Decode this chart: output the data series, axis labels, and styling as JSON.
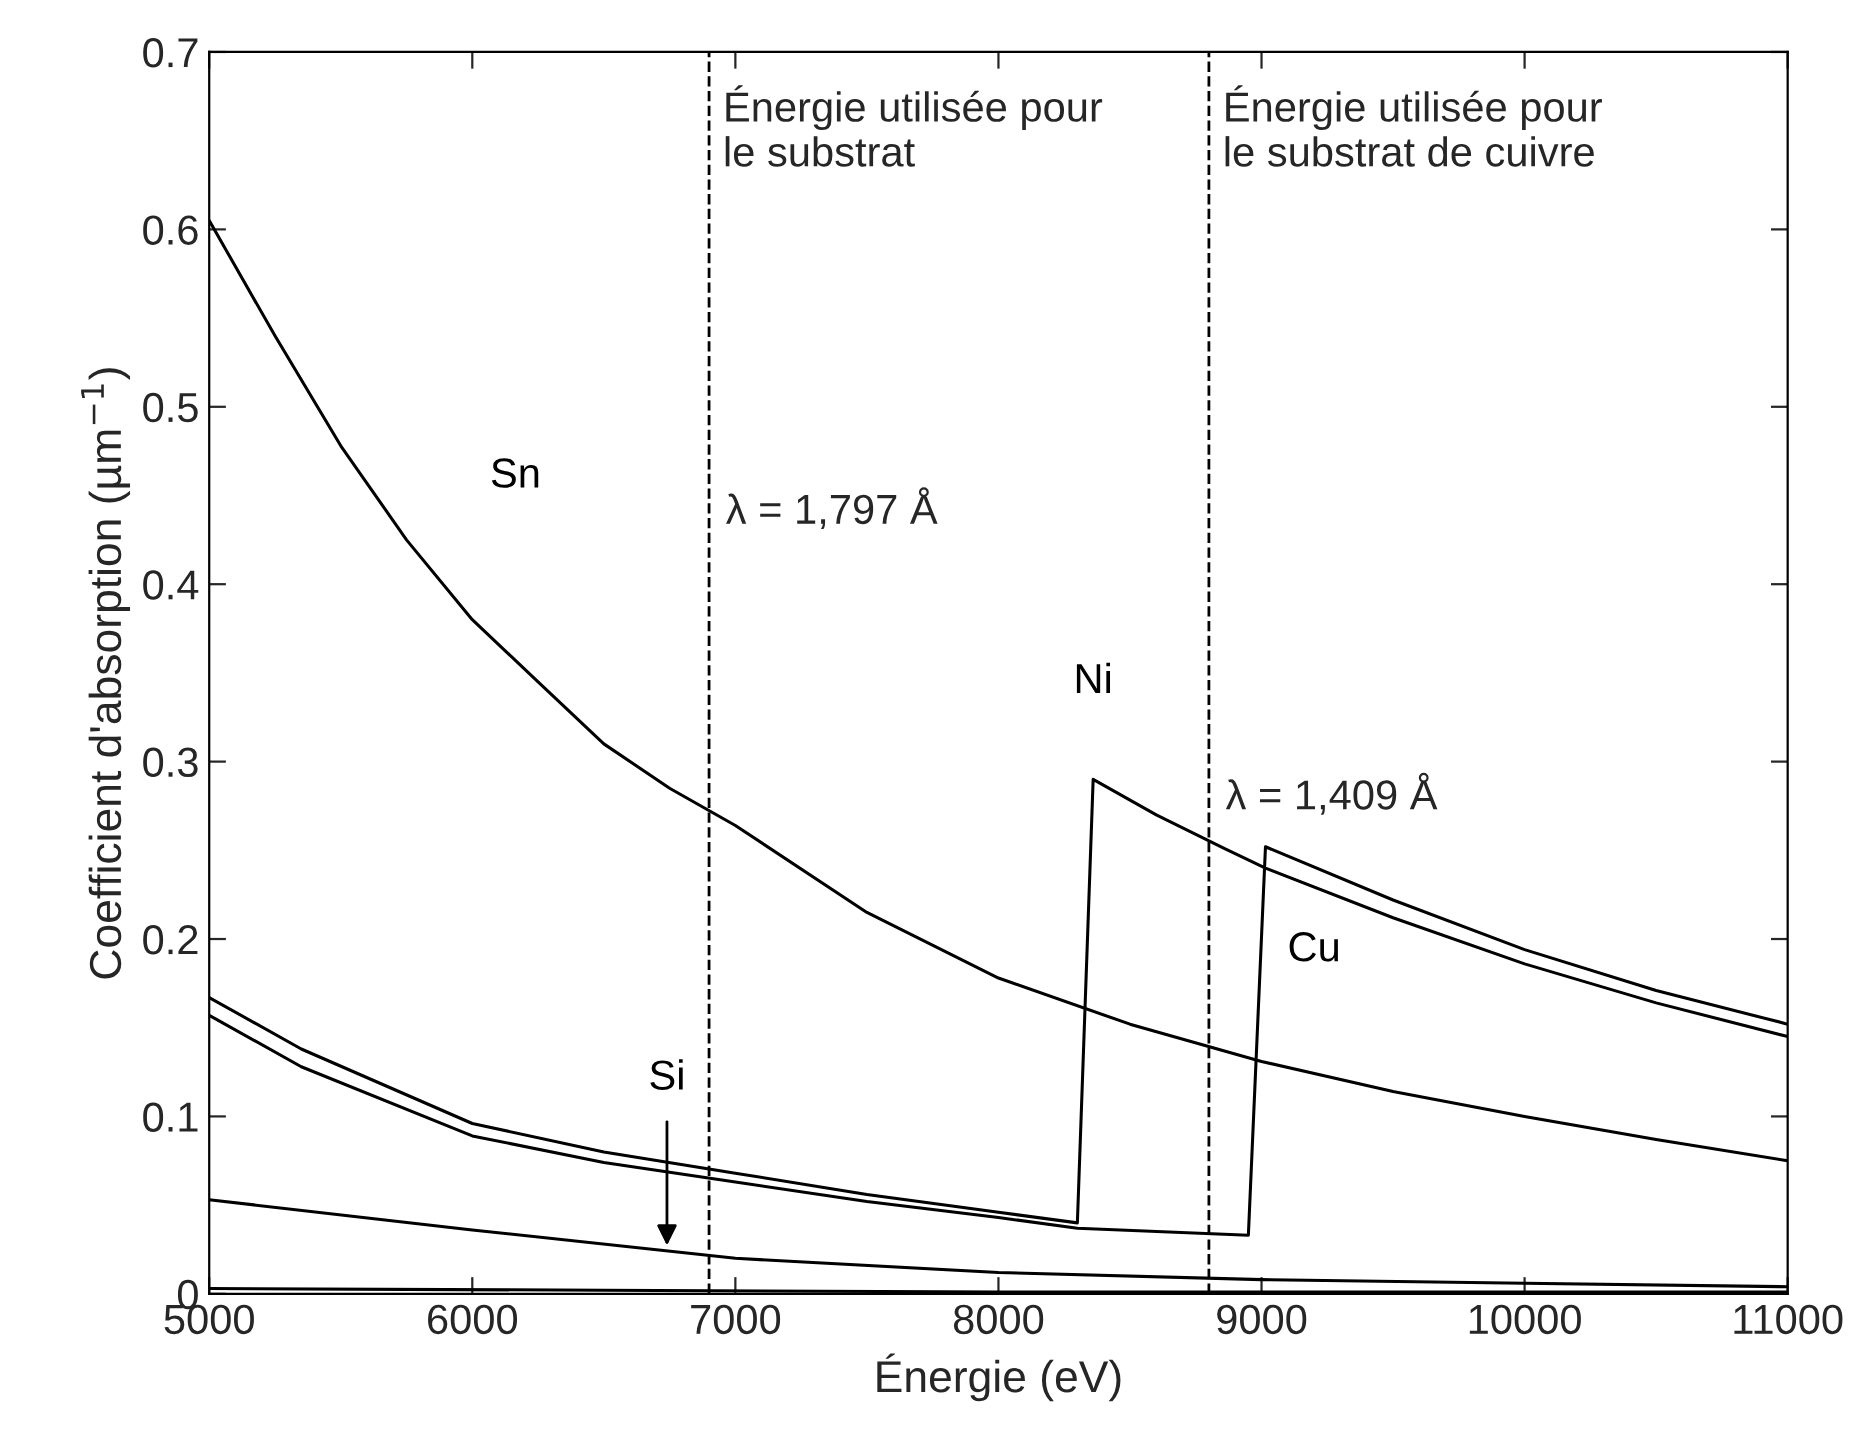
{
  "chart_data": {
    "type": "line",
    "xlabel": "Énergie (eV)",
    "ylabel": "Coefficient d'absorption (µm$^{−1}$)",
    "xlim": [
      5000,
      11000
    ],
    "xticks": [
      5000,
      6000,
      7000,
      8000,
      9000,
      10000,
      11000
    ],
    "ylim": [
      0,
      0.7
    ],
    "yticks": [
      0,
      0.1,
      0.2,
      0.3,
      0.4,
      0.5,
      0.6,
      0.7
    ],
    "grid": false,
    "legend": false,
    "series": [
      {
        "name": "Sn",
        "color": "#000000",
        "x": [
          5000,
          5250,
          5500,
          5750,
          6000,
          6250,
          6500,
          6750,
          7000,
          7500,
          8000,
          8500,
          9000,
          9500,
          10000,
          10500,
          11000
        ],
        "values": [
          0.605,
          0.54,
          0.478,
          0.425,
          0.38,
          0.345,
          0.31,
          0.285,
          0.264,
          0.215,
          0.178,
          0.152,
          0.131,
          0.114,
          0.1,
          0.087,
          0.075
        ]
      },
      {
        "name": "Ni",
        "color": "#000000",
        "x": [
          5000,
          5350,
          6000,
          6500,
          7000,
          7500,
          8000,
          8300,
          8360,
          8600,
          8860,
          9015,
          9500,
          10000,
          10500,
          11000
        ],
        "values": [
          0.167,
          0.138,
          0.096,
          0.08,
          0.068,
          0.056,
          0.046,
          0.04,
          0.29,
          0.27,
          0.251,
          0.24,
          0.212,
          0.186,
          0.164,
          0.145
        ]
      },
      {
        "name": "Cu",
        "color": "#000000",
        "x": [
          5000,
          5350,
          6000,
          6500,
          7000,
          7500,
          8000,
          8300,
          8950,
          9015,
          9500,
          10000,
          10500,
          11000
        ],
        "values": [
          0.157,
          0.128,
          0.089,
          0.074,
          0.063,
          0.052,
          0.043,
          0.037,
          0.033,
          0.252,
          0.222,
          0.194,
          0.171,
          0.152
        ]
      },
      {
        "name": "Si",
        "color": "#000000",
        "x": [
          5000,
          6000,
          7000,
          8000,
          9000,
          10000,
          11000
        ],
        "values": [
          0.053,
          0.036,
          0.02,
          0.012,
          0.008,
          0.006,
          0.004
        ]
      },
      {
        "color": "#000000",
        "x": [
          5000,
          6500,
          8000,
          11000
        ],
        "values": [
          0.003,
          0.002,
          0.001,
          0.001
        ]
      }
    ],
    "ref_lines": [
      {
        "axis": "x",
        "value": 6900,
        "label": "Énergie utilisée pour\nle substrat",
        "line_style": "dashed",
        "color": "#000000"
      },
      {
        "axis": "x",
        "value": 8800,
        "label": "Énergie utilisée pour\nle substrat de cuivre",
        "line_style": "dashed",
        "color": "#000000"
      }
    ],
    "annotations": [
      "λ = 1,797 Å",
      "λ = 1,409 Å"
    ]
  }
}
